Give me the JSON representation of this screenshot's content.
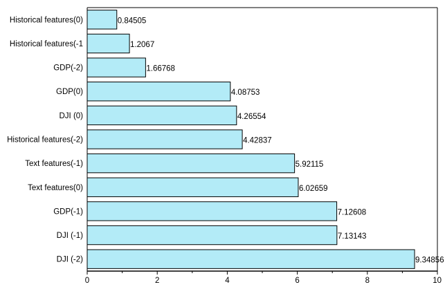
{
  "chart_data": {
    "type": "bar",
    "orientation": "horizontal",
    "categories": [
      "Historical features(0)",
      "Historical features(-1",
      "GDP(-2)",
      "GDP(0)",
      "DJI (0)",
      "Historical features(-2)",
      "Text features(-1)",
      "Text features(0)",
      "GDP(-1)",
      "DJI (-1)",
      "DJI (-2)"
    ],
    "values": [
      0.84505,
      1.2067,
      1.66768,
      4.08753,
      4.26554,
      4.42837,
      5.92115,
      6.02659,
      7.12608,
      7.13143,
      9.34856
    ],
    "value_labels": [
      "0.84505",
      "1.2067",
      "1.66768",
      "4.08753",
      "4.26554",
      "4.42837",
      "5.92115",
      "6.02659",
      "7.12608",
      "7.13143",
      "9.34856"
    ],
    "xlim": [
      0,
      10
    ],
    "xticks": [
      0,
      2,
      4,
      6,
      8,
      10
    ],
    "xtick_labels": [
      "0",
      "2",
      "4",
      "6",
      "8",
      "10"
    ],
    "title": "",
    "xlabel": "",
    "ylabel": "",
    "grid": false,
    "bar_color": "#b3ebf7",
    "bar_edge_color": "#000000"
  }
}
